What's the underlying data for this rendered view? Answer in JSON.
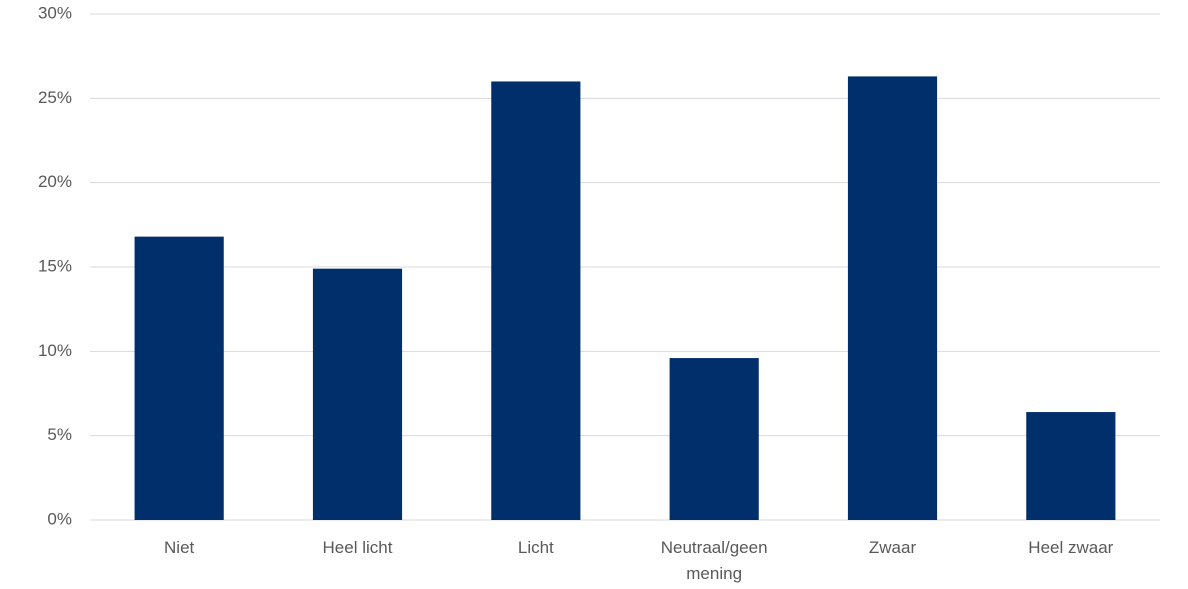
{
  "chart_data": {
    "type": "bar",
    "categories": [
      "Niet",
      "Heel licht",
      "Licht",
      "Neutraal/geen mening",
      "Zwaar",
      "Heel zwaar"
    ],
    "values": [
      16.8,
      14.9,
      26.0,
      9.6,
      26.3,
      6.4
    ],
    "color": "#002f6c",
    "ylim": [
      0,
      30
    ],
    "yticks": [
      {
        "value": 0,
        "label": "0%"
      },
      {
        "value": 5,
        "label": "5%"
      },
      {
        "value": 10,
        "label": "10%"
      },
      {
        "value": 15,
        "label": "15%"
      },
      {
        "value": 20,
        "label": "20%"
      },
      {
        "value": 25,
        "label": "25%"
      },
      {
        "value": 30,
        "label": "30%"
      }
    ],
    "grid": true
  }
}
